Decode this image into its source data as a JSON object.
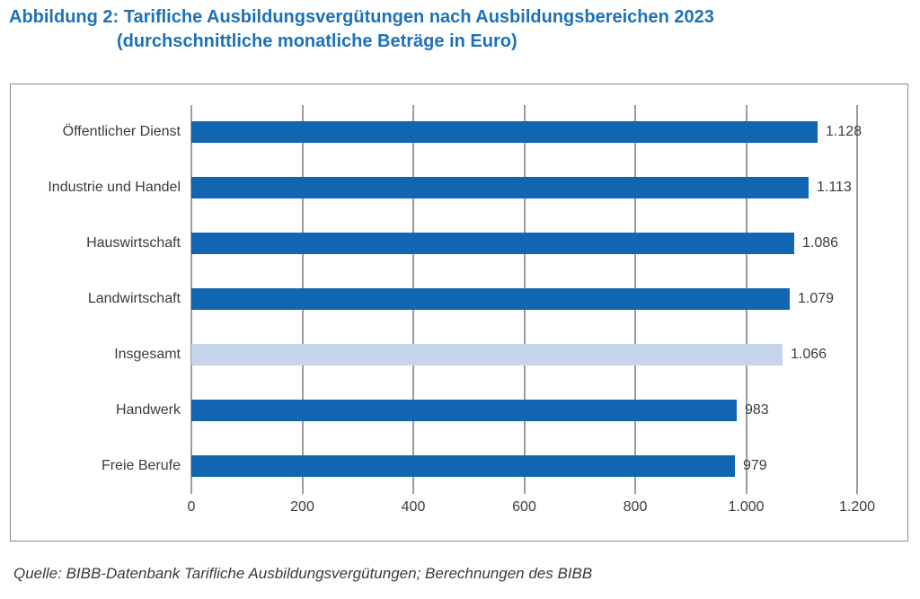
{
  "title": {
    "line1": "Abbildung 2: Tarifliche Ausbildungsvergütungen nach Ausbildungsbereichen 2023",
    "line2": "(durchschnittliche monatliche Beträge in Euro)"
  },
  "source": "Quelle: BIBB-Datenbank Tarifliche Ausbildungsvergütungen; Berechnungen des BIBB",
  "colors": {
    "title_blue": "#1D71B8",
    "bar_blue": "#1266B1",
    "bar_highlight_light_blue": "#C6D4EC",
    "grid_gray": "#9C9C9C",
    "text_dark": "#3C3C3B",
    "box_border": "#8C8C8C"
  },
  "chart_data": {
    "type": "bar",
    "orientation": "horizontal",
    "title": "Abbildung 2: Tarifliche Ausbildungsvergütungen nach Ausbildungsbereichen 2023 (durchschnittliche monatliche Beträge in Euro)",
    "categories": [
      "Öffentlicher Dienst",
      "Industrie und Handel",
      "Hauswirtschaft",
      "Landwirtschaft",
      "Insgesamt",
      "Handwerk",
      "Freie Berufe"
    ],
    "values": [
      1128,
      1113,
      1086,
      1079,
      1066,
      983,
      979
    ],
    "value_labels": [
      "1.128",
      "1.113",
      "1.086",
      "1.079",
      "1.066",
      "983",
      "979"
    ],
    "highlight_index": 4,
    "highlight_category": "Insgesamt",
    "xlabel": "",
    "ylabel": "",
    "xlim": [
      0,
      1200
    ],
    "xticks": [
      0,
      200,
      400,
      600,
      800,
      1000,
      1200
    ],
    "xtick_labels": [
      "0",
      "200",
      "400",
      "600",
      "800",
      "1.000",
      "1.200"
    ],
    "grid": true,
    "legend": false
  }
}
